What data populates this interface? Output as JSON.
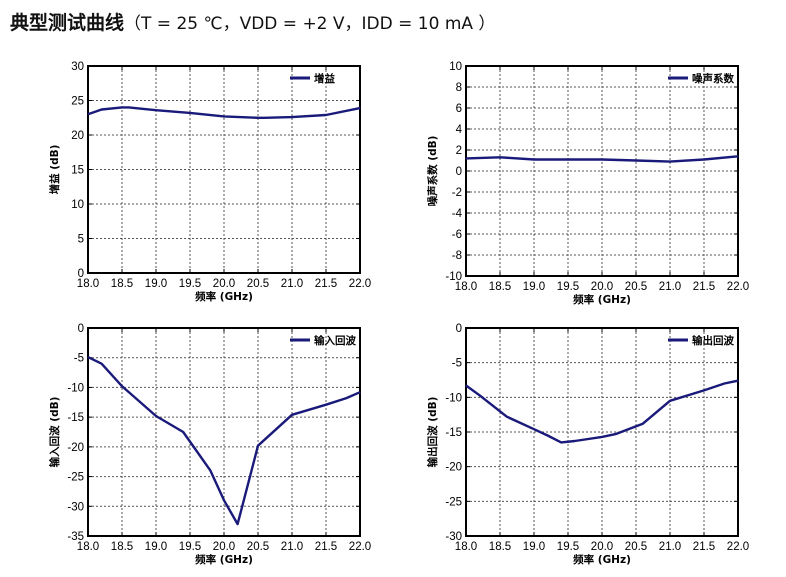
{
  "title": {
    "main": "典型测试曲线",
    "conditions": "（T = 25 ℃，VDD = +2 V，IDD = 10 mA ）"
  },
  "colors": {
    "series": "#1a1a7a",
    "grid": "#555555",
    "frame": "#000000"
  },
  "chart_data": [
    {
      "type": "line",
      "xlabel": "频率 (GHz)",
      "ylabel": "增益 (dB)",
      "xlim": [
        18.0,
        22.0
      ],
      "ylim": [
        0,
        30
      ],
      "xticks": [
        "18.0",
        "18.5",
        "19.0",
        "19.5",
        "20.0",
        "20.5",
        "21.0",
        "21.5",
        "22.0"
      ],
      "yticks": [
        "0",
        "5",
        "10",
        "15",
        "20",
        "25",
        "30"
      ],
      "grid": true,
      "legend_position": "top-right",
      "series": [
        {
          "name": "增益",
          "x": [
            18.0,
            18.2,
            18.5,
            18.6,
            19.0,
            19.5,
            20.0,
            20.5,
            20.6,
            21.0,
            21.5,
            22.0
          ],
          "y": [
            23.0,
            23.7,
            24.0,
            24.0,
            23.6,
            23.2,
            22.7,
            22.5,
            22.5,
            22.6,
            22.9,
            23.9
          ]
        }
      ]
    },
    {
      "type": "line",
      "xlabel": "频率 (GHz)",
      "ylabel": "噪声系数 (dB)",
      "xlim": [
        18.0,
        22.0
      ],
      "ylim": [
        -10,
        10
      ],
      "xticks": [
        "18.0",
        "18.5",
        "19.0",
        "19.5",
        "20.0",
        "20.5",
        "21.0",
        "21.5",
        "22.0"
      ],
      "yticks": [
        "-10",
        "-8",
        "-6",
        "-4",
        "-2",
        "0",
        "2",
        "4",
        "6",
        "8",
        "10"
      ],
      "grid": true,
      "legend_position": "top-right",
      "series": [
        {
          "name": "噪声系数",
          "x": [
            18.0,
            18.5,
            19.0,
            19.5,
            20.0,
            20.5,
            21.0,
            21.5,
            22.0
          ],
          "y": [
            1.2,
            1.3,
            1.1,
            1.1,
            1.1,
            1.0,
            0.9,
            1.1,
            1.4
          ]
        }
      ]
    },
    {
      "type": "line",
      "xlabel": "频率 (GHz)",
      "ylabel": "输入回波 (dB)",
      "xlim": [
        18.0,
        22.0
      ],
      "ylim": [
        -35,
        0
      ],
      "xticks": [
        "18.0",
        "18.5",
        "19.0",
        "19.5",
        "20.0",
        "20.5",
        "21.0",
        "21.5",
        "22.0"
      ],
      "yticks": [
        "-35",
        "-30",
        "-25",
        "-20",
        "-15",
        "-10",
        "-5",
        "0"
      ],
      "grid": true,
      "legend_position": "top-right",
      "series": [
        {
          "name": "输入回波",
          "x": [
            18.0,
            18.2,
            18.5,
            19.0,
            19.4,
            19.8,
            20.0,
            20.2,
            20.5,
            21.0,
            21.5,
            21.8,
            22.0
          ],
          "y": [
            -4.9,
            -6.0,
            -9.8,
            -14.8,
            -17.5,
            -24.0,
            -29.0,
            -33.0,
            -19.8,
            -14.6,
            -12.9,
            -11.8,
            -10.8
          ]
        }
      ]
    },
    {
      "type": "line",
      "xlabel": "频率 (GHz)",
      "ylabel": "输出回波 (dB)",
      "xlim": [
        18.0,
        22.0
      ],
      "ylim": [
        -30,
        0
      ],
      "xticks": [
        "18.0",
        "18.5",
        "19.0",
        "19.5",
        "20.0",
        "20.5",
        "21.0",
        "21.5",
        "22.0"
      ],
      "yticks": [
        "-30",
        "-25",
        "-20",
        "-15",
        "-10",
        "-5",
        "0"
      ],
      "grid": true,
      "legend_position": "top-right",
      "series": [
        {
          "name": "输出回波",
          "x": [
            18.0,
            18.2,
            18.6,
            19.0,
            19.2,
            19.4,
            19.6,
            20.0,
            20.2,
            20.6,
            21.0,
            21.5,
            21.8,
            22.0
          ],
          "y": [
            -8.3,
            -9.7,
            -12.8,
            -14.6,
            -15.5,
            -16.5,
            -16.3,
            -15.7,
            -15.3,
            -13.8,
            -10.5,
            -9.0,
            -8.0,
            -7.6
          ]
        }
      ]
    }
  ]
}
